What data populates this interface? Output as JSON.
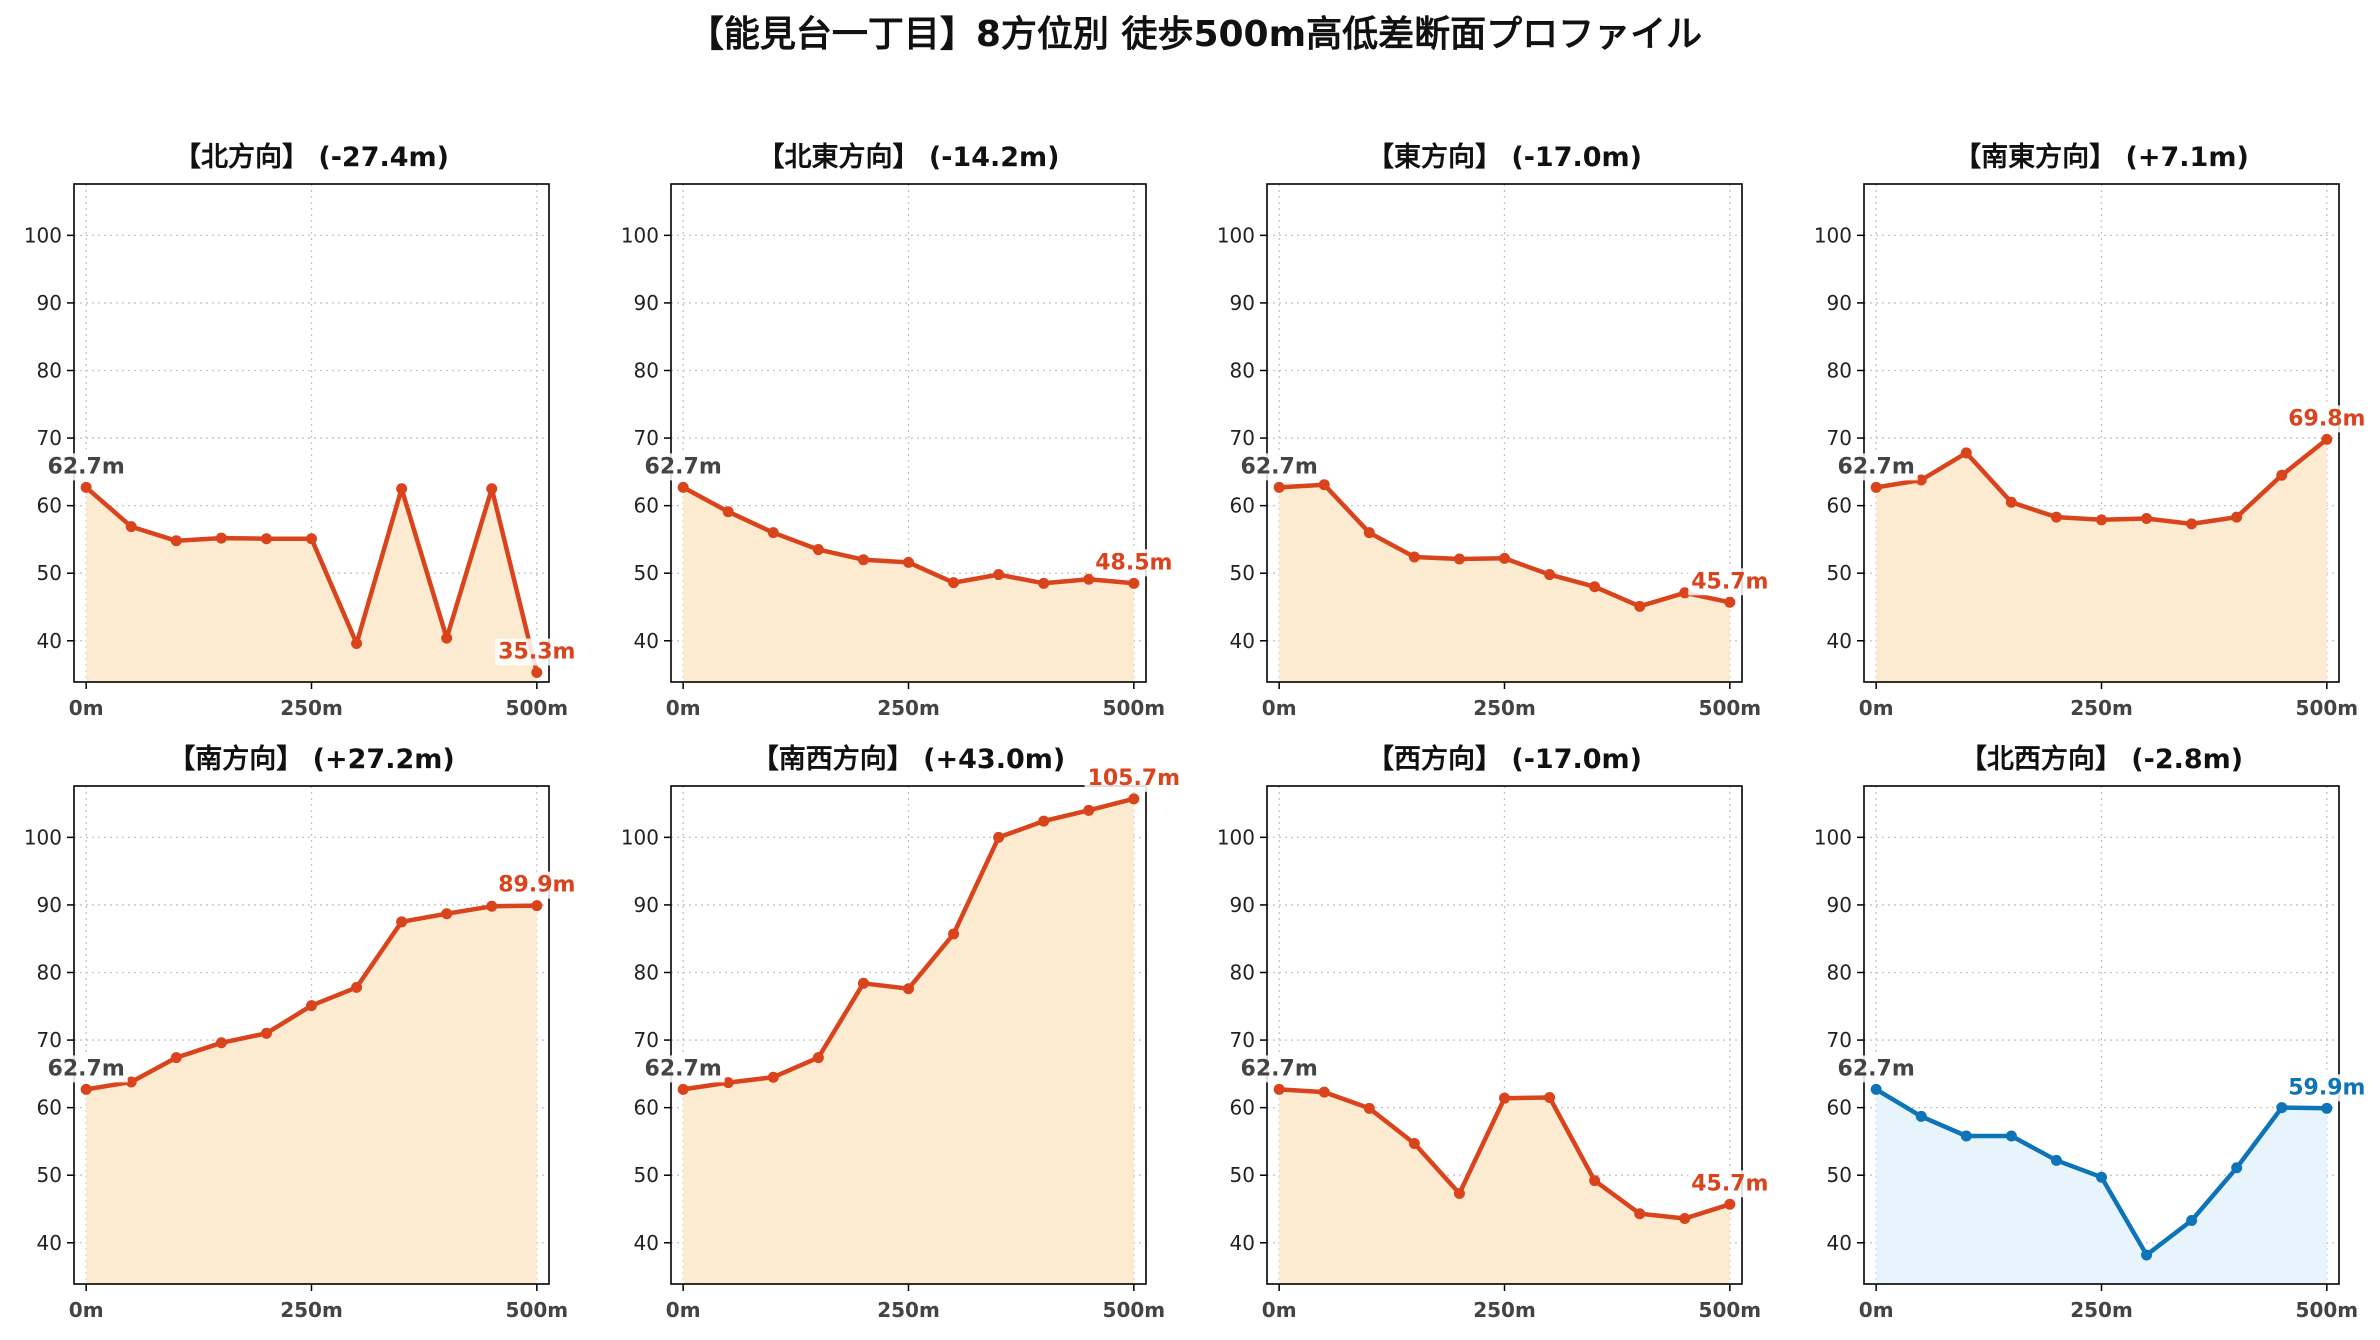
{
  "figure": {
    "title": "【能見台一丁目】8方位別 徒歩500m高低差断面プロファイル"
  },
  "chart_data": [
    {
      "type": "area",
      "title": "【北方向】 (-27.4m)",
      "x": [
        0,
        50,
        100,
        150,
        200,
        250,
        300,
        350,
        400,
        450,
        500
      ],
      "values": [
        62.7,
        56.9,
        54.8,
        55.2,
        55.1,
        55.1,
        39.6,
        62.5,
        40.4,
        62.5,
        35.3
      ],
      "xlim": [
        -13.5,
        513.5
      ],
      "ylim": [
        33.9,
        107.6
      ],
      "xticks": [
        0,
        250,
        500
      ],
      "xticklabels": [
        "0m",
        "250m",
        "500m"
      ],
      "yticks": [
        40,
        50,
        60,
        70,
        80,
        90,
        100
      ],
      "yticklabels": [
        "40",
        "50",
        "60",
        "70",
        "80",
        "90",
        "100"
      ],
      "grid": true,
      "color": "#d9441d",
      "fill_color": "#fdebd1",
      "annotations": [
        {
          "x": 0,
          "y": 62.7,
          "text": "62.7m",
          "color": "#444444"
        },
        {
          "x": 500,
          "y": 35.3,
          "text": "35.3m",
          "color": "#d9441d"
        }
      ]
    },
    {
      "type": "area",
      "title": "【北東方向】 (-14.2m)",
      "x": [
        0,
        50,
        100,
        150,
        200,
        250,
        300,
        350,
        400,
        450,
        500
      ],
      "values": [
        62.7,
        59.1,
        56.0,
        53.5,
        52.0,
        51.6,
        48.6,
        49.8,
        48.5,
        49.1,
        48.5
      ],
      "xlim": [
        -13.5,
        513.5
      ],
      "ylim": [
        33.9,
        107.6
      ],
      "xticks": [
        0,
        250,
        500
      ],
      "xticklabels": [
        "0m",
        "250m",
        "500m"
      ],
      "yticks": [
        40,
        50,
        60,
        70,
        80,
        90,
        100
      ],
      "yticklabels": [
        "40",
        "50",
        "60",
        "70",
        "80",
        "90",
        "100"
      ],
      "grid": true,
      "color": "#d9441d",
      "fill_color": "#fdebd1",
      "annotations": [
        {
          "x": 0,
          "y": 62.7,
          "text": "62.7m",
          "color": "#444444"
        },
        {
          "x": 500,
          "y": 48.5,
          "text": "48.5m",
          "color": "#d9441d"
        }
      ]
    },
    {
      "type": "area",
      "title": "【東方向】 (-17.0m)",
      "x": [
        0,
        50,
        100,
        150,
        200,
        250,
        300,
        350,
        400,
        450,
        500
      ],
      "values": [
        62.7,
        63.1,
        56.0,
        52.4,
        52.1,
        52.2,
        49.8,
        48.0,
        45.1,
        47.1,
        45.7
      ],
      "xlim": [
        -13.5,
        513.5
      ],
      "ylim": [
        33.9,
        107.6
      ],
      "xticks": [
        0,
        250,
        500
      ],
      "xticklabels": [
        "0m",
        "250m",
        "500m"
      ],
      "yticks": [
        40,
        50,
        60,
        70,
        80,
        90,
        100
      ],
      "yticklabels": [
        "40",
        "50",
        "60",
        "70",
        "80",
        "90",
        "100"
      ],
      "grid": true,
      "color": "#d9441d",
      "fill_color": "#fdebd1",
      "annotations": [
        {
          "x": 0,
          "y": 62.7,
          "text": "62.7m",
          "color": "#444444"
        },
        {
          "x": 500,
          "y": 45.7,
          "text": "45.7m",
          "color": "#d9441d"
        }
      ]
    },
    {
      "type": "area",
      "title": "【南東方向】 (+7.1m)",
      "x": [
        0,
        50,
        100,
        150,
        200,
        250,
        300,
        350,
        400,
        450,
        500
      ],
      "values": [
        62.7,
        63.8,
        67.8,
        60.5,
        58.3,
        57.9,
        58.1,
        57.3,
        58.3,
        64.5,
        69.8
      ],
      "xlim": [
        -13.5,
        513.5
      ],
      "ylim": [
        33.9,
        107.6
      ],
      "xticks": [
        0,
        250,
        500
      ],
      "xticklabels": [
        "0m",
        "250m",
        "500m"
      ],
      "yticks": [
        40,
        50,
        60,
        70,
        80,
        90,
        100
      ],
      "yticklabels": [
        "40",
        "50",
        "60",
        "70",
        "80",
        "90",
        "100"
      ],
      "grid": true,
      "color": "#d9441d",
      "fill_color": "#fdebd1",
      "annotations": [
        {
          "x": 0,
          "y": 62.7,
          "text": "62.7m",
          "color": "#444444"
        },
        {
          "x": 500,
          "y": 69.8,
          "text": "69.8m",
          "color": "#d9441d"
        }
      ]
    },
    {
      "type": "area",
      "title": "【南方向】 (+27.2m)",
      "x": [
        0,
        50,
        100,
        150,
        200,
        250,
        300,
        350,
        400,
        450,
        500
      ],
      "values": [
        62.7,
        63.8,
        67.4,
        69.6,
        71.0,
        75.1,
        77.8,
        87.5,
        88.7,
        89.8,
        89.9
      ],
      "xlim": [
        -13.5,
        513.5
      ],
      "ylim": [
        33.9,
        107.6
      ],
      "xticks": [
        0,
        250,
        500
      ],
      "xticklabels": [
        "0m",
        "250m",
        "500m"
      ],
      "yticks": [
        40,
        50,
        60,
        70,
        80,
        90,
        100
      ],
      "yticklabels": [
        "40",
        "50",
        "60",
        "70",
        "80",
        "90",
        "100"
      ],
      "grid": true,
      "color": "#d9441d",
      "fill_color": "#fdebd1",
      "annotations": [
        {
          "x": 0,
          "y": 62.7,
          "text": "62.7m",
          "color": "#444444"
        },
        {
          "x": 500,
          "y": 89.9,
          "text": "89.9m",
          "color": "#d9441d"
        }
      ]
    },
    {
      "type": "area",
      "title": "【南西方向】 (+43.0m)",
      "x": [
        0,
        50,
        100,
        150,
        200,
        250,
        300,
        350,
        400,
        450,
        500
      ],
      "values": [
        62.7,
        63.7,
        64.5,
        67.4,
        78.4,
        77.6,
        85.7,
        100.0,
        102.4,
        104.0,
        105.7
      ],
      "xlim": [
        -13.5,
        513.5
      ],
      "ylim": [
        33.9,
        107.6
      ],
      "xticks": [
        0,
        250,
        500
      ],
      "xticklabels": [
        "0m",
        "250m",
        "500m"
      ],
      "yticks": [
        40,
        50,
        60,
        70,
        80,
        90,
        100
      ],
      "yticklabels": [
        "40",
        "50",
        "60",
        "70",
        "80",
        "90",
        "100"
      ],
      "grid": true,
      "color": "#d9441d",
      "fill_color": "#fdebd1",
      "annotations": [
        {
          "x": 0,
          "y": 62.7,
          "text": "62.7m",
          "color": "#444444"
        },
        {
          "x": 500,
          "y": 105.7,
          "text": "105.7m",
          "color": "#d9441d"
        }
      ]
    },
    {
      "type": "area",
      "title": "【西方向】 (-17.0m)",
      "x": [
        0,
        50,
        100,
        150,
        200,
        250,
        300,
        350,
        400,
        450,
        500
      ],
      "values": [
        62.7,
        62.3,
        59.9,
        54.7,
        47.3,
        61.4,
        61.5,
        49.2,
        44.3,
        43.6,
        45.7
      ],
      "xlim": [
        -13.5,
        513.5
      ],
      "ylim": [
        33.9,
        107.6
      ],
      "xticks": [
        0,
        250,
        500
      ],
      "xticklabels": [
        "0m",
        "250m",
        "500m"
      ],
      "yticks": [
        40,
        50,
        60,
        70,
        80,
        90,
        100
      ],
      "yticklabels": [
        "40",
        "50",
        "60",
        "70",
        "80",
        "90",
        "100"
      ],
      "grid": true,
      "color": "#d9441d",
      "fill_color": "#fdebd1",
      "annotations": [
        {
          "x": 0,
          "y": 62.7,
          "text": "62.7m",
          "color": "#444444"
        },
        {
          "x": 500,
          "y": 45.7,
          "text": "45.7m",
          "color": "#d9441d"
        }
      ]
    },
    {
      "type": "area",
      "title": "【北西方向】 (-2.8m)",
      "x": [
        0,
        50,
        100,
        150,
        200,
        250,
        300,
        350,
        400,
        450,
        500
      ],
      "values": [
        62.7,
        58.7,
        55.8,
        55.8,
        52.2,
        49.7,
        38.2,
        43.3,
        51.1,
        60.0,
        59.9
      ],
      "xlim": [
        -13.5,
        513.5
      ],
      "ylim": [
        33.9,
        107.6
      ],
      "xticks": [
        0,
        250,
        500
      ],
      "xticklabels": [
        "0m",
        "250m",
        "500m"
      ],
      "yticks": [
        40,
        50,
        60,
        70,
        80,
        90,
        100
      ],
      "yticklabels": [
        "40",
        "50",
        "60",
        "70",
        "80",
        "90",
        "100"
      ],
      "grid": true,
      "color": "#0e74b8",
      "fill_color": "#e8f4fb",
      "annotations": [
        {
          "x": 0,
          "y": 62.7,
          "text": "62.7m",
          "color": "#444444"
        },
        {
          "x": 500,
          "y": 59.9,
          "text": "59.9m",
          "color": "#0e74b8"
        }
      ]
    }
  ]
}
